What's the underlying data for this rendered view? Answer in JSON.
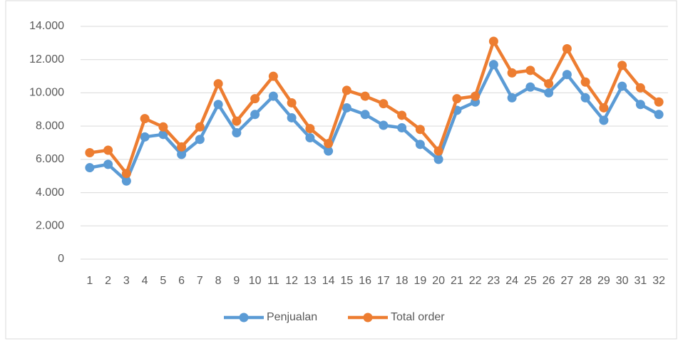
{
  "chart_data": {
    "type": "line",
    "categories": [
      "1",
      "2",
      "3",
      "4",
      "5",
      "6",
      "7",
      "8",
      "9",
      "10",
      "11",
      "12",
      "13",
      "14",
      "15",
      "16",
      "17",
      "18",
      "19",
      "20",
      "21",
      "22",
      "23",
      "24",
      "25",
      "26",
      "27",
      "28",
      "29",
      "30",
      "31",
      "32"
    ],
    "series": [
      {
        "name": "Penjualan",
        "color": "#5b9bd5",
        "values": [
          5500,
          5700,
          4700,
          7350,
          7500,
          6300,
          7200,
          9300,
          7600,
          8700,
          9800,
          8500,
          7300,
          6500,
          9100,
          8700,
          8050,
          7900,
          6900,
          6000,
          8950,
          9450,
          11700,
          9700,
          10350,
          10000,
          11100,
          9700,
          8350,
          10400,
          9300,
          8700
        ]
      },
      {
        "name": "Total order",
        "color": "#ed7d31",
        "values": [
          6400,
          6550,
          5150,
          8450,
          7950,
          6750,
          7950,
          10550,
          8300,
          9650,
          11000,
          9400,
          7850,
          6950,
          10150,
          9800,
          9350,
          8650,
          7800,
          6500,
          9650,
          9800,
          13100,
          11200,
          11350,
          10550,
          12650,
          10650,
          9100,
          11650,
          10300,
          9450
        ]
      }
    ],
    "ylim": [
      0,
      14000
    ],
    "yticks": [
      0,
      {
        "value": 2000,
        "label": "2.000"
      },
      {
        "value": 4000,
        "label": "4.000"
      },
      {
        "value": 6000,
        "label": "6.000"
      },
      {
        "value": 8000,
        "label": "8.000"
      },
      {
        "value": 10000,
        "label": "10.000"
      },
      {
        "value": 12000,
        "label": "12.000"
      },
      {
        "value": 14000,
        "label": "14.000"
      }
    ],
    "grid": true,
    "legend": "bottom"
  }
}
